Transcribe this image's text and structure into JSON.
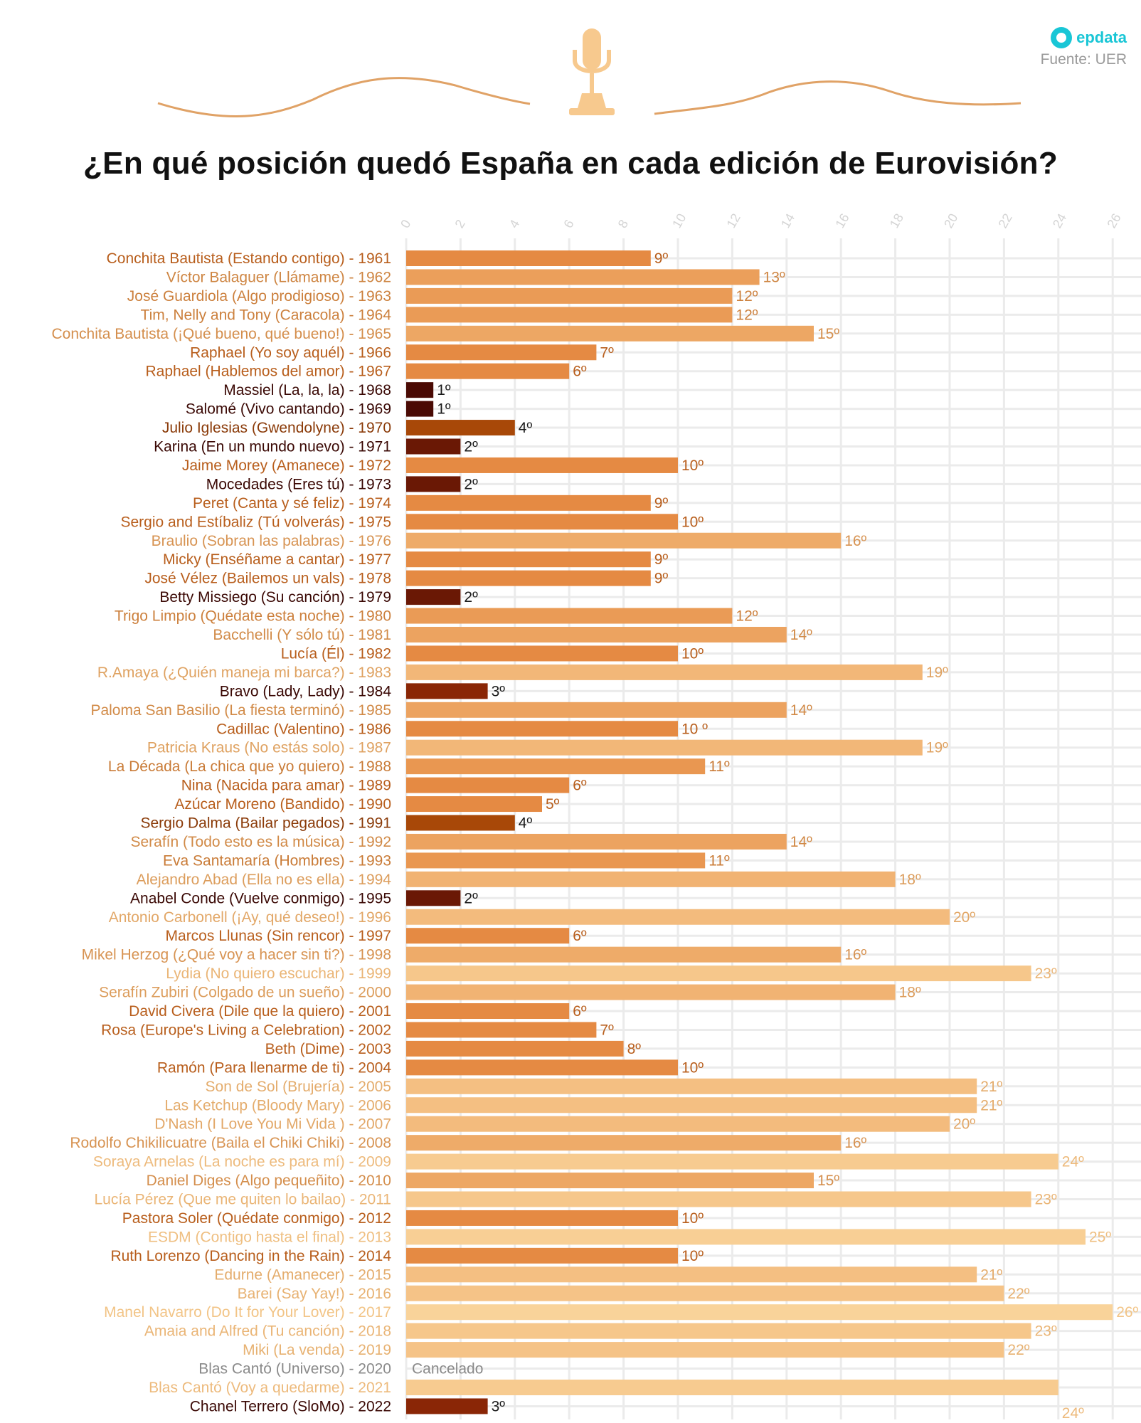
{
  "brand": {
    "name": "epdata",
    "icon": "epdata-logo-icon",
    "color": "#19c6d6"
  },
  "source": "Fuente: UER",
  "header_icon": "microphone-icon",
  "title": "¿En qué posición quedó España en cada edición de Eurovisión?",
  "chart_data": {
    "type": "bar",
    "orientation": "horizontal",
    "title": "¿En qué posición quedó España en cada edición de Eurovisión?",
    "xlabel": "",
    "ylabel": "",
    "xlim": [
      0,
      26
    ],
    "x_ticks": [
      0,
      2,
      4,
      6,
      8,
      10,
      12,
      14,
      16,
      18,
      20,
      22,
      24,
      26
    ],
    "grid": true,
    "legend": "none",
    "colors": {
      "positions_1_3": "#4a0a04 to #8a2606",
      "mid_positions": "#e8893f",
      "high_positions": "#f7c98e"
    },
    "categories": [
      "Conchita Bautista (Estando contigo) - 1961",
      "Víctor Balaguer (Llámame) - 1962",
      "José Guardiola (Algo prodigioso) - 1963",
      "Tim, Nelly and Tony (Caracola) - 1964",
      "Conchita Bautista (¡Qué bueno, qué bueno!) - 1965",
      "Raphael (Yo soy aquél) - 1966",
      "Raphael (Hablemos del amor) - 1967",
      "Massiel (La, la, la) - 1968",
      "Salomé (Vivo cantando) - 1969",
      "Julio Iglesias (Gwendolyne) - 1970",
      "Karina (En un mundo nuevo) - 1971",
      "Jaime Morey (Amanece) - 1972",
      "Mocedades (Eres tú) - 1973",
      "Peret (Canta y sé feliz) - 1974",
      "Sergio and Estíbaliz (Tú volverás) - 1975",
      "Braulio (Sobran las palabras) - 1976",
      "Micky (Enséñame a cantar) - 1977",
      "José Vélez (Bailemos un vals) - 1978",
      "Betty Missiego (Su canción) - 1979",
      "Trigo Limpio (Quédate esta noche) - 1980",
      "Bacchelli (Y sólo tú) - 1981",
      "Lucía (Él) - 1982",
      "R.Amaya (¿Quién maneja mi barca?) - 1983",
      "Bravo (Lady, Lady) - 1984",
      "Paloma San Basilio (La fiesta terminó) - 1985",
      "Cadillac (Valentino) - 1986",
      "Patricia Kraus (No estás solo) - 1987",
      "La Década (La chica que yo quiero) - 1988",
      "Nina (Nacida para amar) - 1989",
      "Azúcar Moreno (Bandido) - 1990",
      "Sergio Dalma (Bailar pegados) - 1991",
      "Serafín (Todo esto es la música) - 1992",
      "Eva Santamaría (Hombres) - 1993",
      "Alejandro Abad (Ella no es ella) - 1994",
      "Anabel Conde (Vuelve conmigo) - 1995",
      "Antonio Carbonell (¡Ay, qué deseo!) - 1996",
      "Marcos Llunas (Sin rencor) - 1997",
      "Mikel Herzog (¿Qué voy a hacer sin ti?) - 1998",
      "Lydia (No quiero escuchar) - 1999",
      "Serafín Zubiri (Colgado de un sueño) - 2000",
      "David Civera (Dile que la quiero) - 2001",
      "Rosa (Europe's Living a Celebration) - 2002",
      "Beth (Dime) - 2003",
      "Ramón (Para llenarme de ti) - 2004",
      "Son de Sol (Brujería) - 2005",
      "Las Ketchup (Bloody Mary) - 2006",
      "D'Nash (I Love You Mi Vida ) - 2007",
      "Rodolfo Chikilicuatre (Baila el Chiki Chiki) - 2008",
      "Soraya Arnelas (La noche es para mí) - 2009",
      "Daniel Diges (Algo pequeñito) - 2010",
      "Lucía Pérez (Que me quiten lo bailao) - 2011",
      "Pastora Soler (Quédate conmigo) - 2012",
      "ESDM (Contigo hasta el final) - 2013",
      "Ruth Lorenzo (Dancing in the Rain) - 2014",
      "Edurne (Amanecer) - 2015",
      "Barei (Say Yay!) - 2016",
      "Manel Navarro (Do It for Your Lover) - 2017",
      "Amaia and Alfred (Tu canción) - 2018",
      "Miki (La venda) - 2019",
      "Blas Cantó (Universo) - 2020",
      "Blas Cantó (Voy a quedarme) - 2021",
      "Chanel Terrero (SloMo) - 2022"
    ],
    "values": [
      9,
      13,
      12,
      12,
      15,
      7,
      6,
      1,
      1,
      4,
      2,
      10,
      2,
      9,
      10,
      16,
      9,
      9,
      2,
      12,
      14,
      10,
      19,
      3,
      14,
      10,
      19,
      11,
      6,
      5,
      4,
      14,
      11,
      18,
      2,
      20,
      6,
      16,
      23,
      18,
      6,
      7,
      8,
      10,
      21,
      21,
      20,
      16,
      24,
      15,
      23,
      10,
      25,
      10,
      21,
      22,
      26,
      23,
      22,
      null,
      24,
      3
    ],
    "value_labels": [
      "9º",
      "13º",
      "12º",
      "12º",
      "15º",
      "7º",
      "6º",
      "1º",
      "1º",
      "4º",
      "2º",
      "10º",
      "2º",
      "9º",
      "10º",
      "16º",
      "9º",
      "9º",
      "2º",
      "12º",
      "14º",
      "10º",
      "19º",
      "3º",
      "14º",
      "10 º",
      "19º",
      "11º",
      "6º",
      "5º",
      "4º",
      "14º",
      "11º",
      "18º",
      "2º",
      "20º",
      "6º",
      "16º",
      "23º",
      "18º",
      "6º",
      "7º",
      "8º",
      "10º",
      "21º",
      "21º",
      "20º",
      "16º",
      "24º",
      "15º",
      "23º",
      "10º",
      "25º",
      "10º",
      "21º",
      "22º",
      "26º",
      "23º",
      "22º",
      "Cancelado",
      "24º",
      "3º"
    ]
  }
}
